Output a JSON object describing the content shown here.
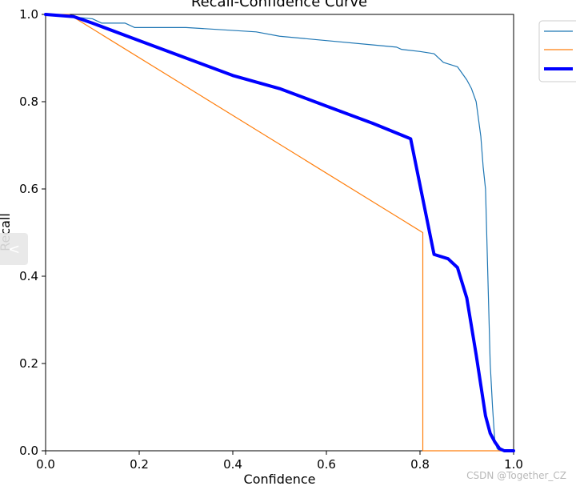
{
  "chart_data": {
    "type": "line",
    "title": "Recall-Confidence Curve",
    "xlabel": "Confidence",
    "ylabel": "Recall",
    "xlim": [
      0.0,
      1.0
    ],
    "ylim": [
      0.0,
      1.0
    ],
    "xticks": [
      "0.0",
      "0.2",
      "0.4",
      "0.6",
      "0.8",
      "1.0"
    ],
    "yticks": [
      "0.0",
      "0.2",
      "0.4",
      "0.6",
      "0.8",
      "1.0"
    ],
    "grid": false,
    "legend_position": "outside-top-right",
    "series": [
      {
        "color": "#1f77b4",
        "width": 1.2,
        "x": [
          0.0,
          0.05,
          0.1,
          0.12,
          0.17,
          0.19,
          0.3,
          0.45,
          0.5,
          0.6,
          0.7,
          0.75,
          0.76,
          0.8,
          0.83,
          0.85,
          0.88,
          0.9,
          0.91,
          0.92,
          0.93,
          0.935,
          0.94,
          0.945,
          0.95,
          0.955,
          0.96,
          0.965,
          0.97,
          0.98
        ],
        "y": [
          1.0,
          0.995,
          0.99,
          0.98,
          0.98,
          0.97,
          0.97,
          0.96,
          0.95,
          0.94,
          0.93,
          0.925,
          0.92,
          0.915,
          0.91,
          0.89,
          0.88,
          0.85,
          0.83,
          0.8,
          0.72,
          0.65,
          0.6,
          0.4,
          0.2,
          0.1,
          0.02,
          0.005,
          0.0,
          0.0
        ]
      },
      {
        "color": "#ff7f0e",
        "width": 1.2,
        "x": [
          0.0,
          0.05,
          0.806,
          0.806,
          0.806,
          1.0
        ],
        "y": [
          1.0,
          1.0,
          0.5,
          0.5,
          0.0,
          0.0
        ]
      },
      {
        "color": "#0000ff",
        "width": 4,
        "x": [
          0.0,
          0.06,
          0.1,
          0.2,
          0.3,
          0.4,
          0.5,
          0.6,
          0.7,
          0.78,
          0.83,
          0.86,
          0.88,
          0.9,
          0.92,
          0.94,
          0.95,
          0.96,
          0.97,
          0.98,
          1.0
        ],
        "y": [
          1.0,
          0.995,
          0.98,
          0.94,
          0.9,
          0.86,
          0.83,
          0.79,
          0.75,
          0.715,
          0.45,
          0.44,
          0.42,
          0.35,
          0.22,
          0.08,
          0.04,
          0.02,
          0.005,
          0.0,
          0.0
        ]
      }
    ]
  },
  "watermark": "CSDN @Together_CZ",
  "side_tab_glyph": "<"
}
